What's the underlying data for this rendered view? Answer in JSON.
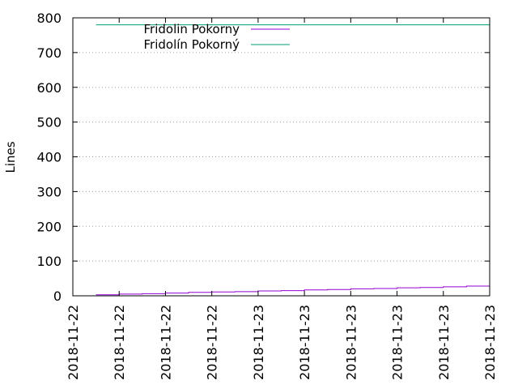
{
  "chart_data": {
    "type": "line",
    "ylabel": "Lines",
    "xlabel": "",
    "ylim": [
      0,
      800
    ],
    "yticks": [
      0,
      100,
      200,
      300,
      400,
      500,
      600,
      700,
      800
    ],
    "xticks": [
      "2018-11-22",
      "2018-11-22",
      "2018-11-22",
      "2018-11-22",
      "2018-11-23",
      "2018-11-23",
      "2018-11-23",
      "2018-11-23",
      "2018-11-23",
      "2018-11-23"
    ],
    "grid": true,
    "legend_position": "top-left",
    "series": [
      {
        "name": "Fridolin Pokorny",
        "color": "#9400d3",
        "x": [
          0.5,
          1.0,
          1.5,
          2.0,
          2.5,
          3.0,
          3.5,
          4.0,
          4.5,
          5.0,
          5.5,
          6.0,
          6.5,
          7.0,
          7.5,
          8.0,
          8.5,
          9.0
        ],
        "values": [
          3,
          5,
          6,
          8,
          10,
          11,
          12,
          14,
          15,
          17,
          18,
          20,
          21,
          23,
          24,
          26,
          28,
          30
        ]
      },
      {
        "name": "Fridolín Pokorný",
        "color": "#009e73",
        "x": [
          0.5,
          9.0
        ],
        "values": [
          780,
          780
        ]
      }
    ]
  }
}
